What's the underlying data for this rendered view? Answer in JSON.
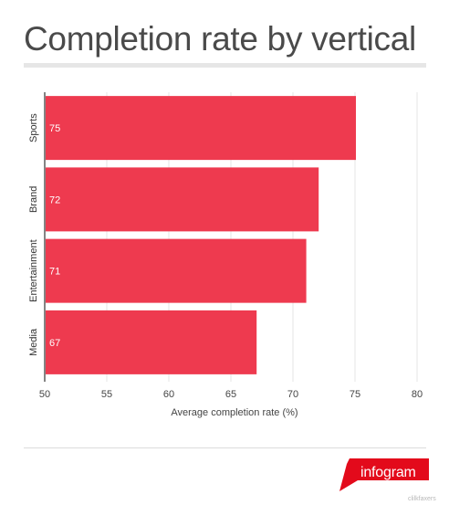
{
  "header": {
    "title": "Completion rate by vertical"
  },
  "chart_data": {
    "type": "bar",
    "orientation": "horizontal",
    "title": "Completion rate by vertical",
    "xlabel": "Average completion rate (%)",
    "ylabel": "",
    "categories": [
      "Sports",
      "Brand",
      "Entertainment",
      "Media"
    ],
    "values": [
      75,
      72,
      71,
      67
    ],
    "data_labels": [
      "75",
      "72",
      "71",
      "67"
    ],
    "xlim": [
      50,
      80
    ],
    "xticks": [
      "50",
      "55",
      "60",
      "65",
      "70",
      "75",
      "80"
    ],
    "grid": true,
    "legend": "none",
    "bar_color": "#ee3a4f"
  },
  "brand": {
    "label": "infogram",
    "color": "#e30a1b"
  },
  "watermark": "clilkfaxers"
}
